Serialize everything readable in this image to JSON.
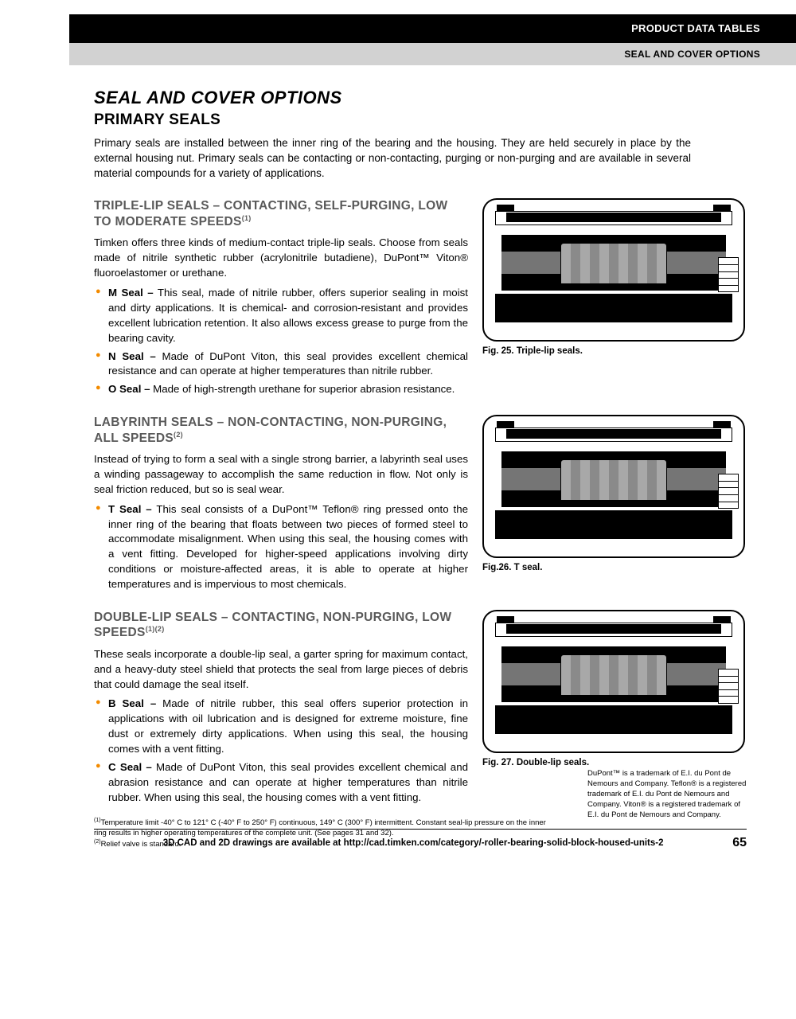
{
  "header": {
    "black_bar": "PRODUCT DATA TABLES",
    "gray_bar": "SEAL AND COVER OPTIONS"
  },
  "title": "SEAL AND COVER OPTIONS",
  "subtitle": "PRIMARY SEALS",
  "intro": "Primary seals are installed between the inner ring of the bearing and the housing. They are held securely in place by the external housing nut. Primary seals can be contacting or non-contacting, purging or non-purging and are available in several material compounds for a variety of applications.",
  "sections": [
    {
      "heading": "TRIPLE-LIP SEALS – CONTACTING, SELF-PURGING, LOW TO MODERATE SPEEDS",
      "heading_sup": "(1)",
      "para": "Timken offers three kinds of medium-contact triple-lip seals. Choose from seals made of nitrile synthetic rubber (acrylonitrile butadiene), DuPont™ Viton® fluoroelastomer or urethane.",
      "bullets": [
        {
          "bold": "M Seal –",
          "text": " This seal, made of nitrile rubber, offers superior sealing in moist and dirty applications. It is chemical- and corrosion-resistant and provides excellent lubrication retention. It also allows excess grease to purge from the bearing cavity."
        },
        {
          "bold": "N Seal –",
          "text": " Made of DuPont Viton, this seal provides excellent chemical resistance and can operate at higher temperatures than nitrile rubber."
        },
        {
          "bold": "O Seal –",
          "text": " Made of high-strength urethane for superior abrasion resistance."
        }
      ],
      "fig_caption": "Fig. 25. Triple-lip seals."
    },
    {
      "heading": "LABYRINTH SEALS – NON-CONTACTING, NON-PURGING, ALL SPEEDS",
      "heading_sup": "(2)",
      "para": "Instead of trying to form a seal with a single strong barrier, a labyrinth seal uses a winding passageway to accomplish the same reduction in flow. Not only is seal friction reduced, but so is seal wear.",
      "bullets": [
        {
          "bold": "T Seal –",
          "text": " This seal consists of a DuPont™ Teflon® ring pressed onto the inner ring of the bearing that floats between two pieces of formed steel to accommodate misalignment. When using this seal, the housing comes with a vent fitting. Developed for higher-speed applications involving dirty conditions or moisture-affected areas, it is able to operate at higher temperatures and is impervious to most chemicals."
        }
      ],
      "fig_caption": "Fig.26. T seal."
    },
    {
      "heading": "DOUBLE-LIP SEALS – CONTACTING, NON-PURGING, LOW SPEEDS",
      "heading_sup": "(1)(2)",
      "para": "These seals incorporate a double-lip seal, a garter spring for maximum contact, and a heavy-duty steel shield that protects the seal from large pieces of debris that could damage the seal itself.",
      "bullets": [
        {
          "bold": "B Seal –",
          "text": " Made of nitrile rubber, this seal offers superior protection in applications with oil lubrication and is designed for extreme moisture, fine dust or extremely dirty applications. When using this seal, the housing comes with a vent fitting."
        },
        {
          "bold": "C Seal –",
          "text": " Made of DuPont Viton, this seal provides excellent chemical and abrasion resistance and can operate at higher temperatures than nitrile rubber. When using this seal, the housing comes with a vent fitting."
        }
      ],
      "fig_caption": "Fig. 27. Double-lip seals."
    }
  ],
  "footnotes": {
    "n1_sup": "(1)",
    "n1": "Temperature limit -40° C to 121° C (-40° F to 250° F) continuous, 149° C (300° F) intermittent. Constant seal-lip pressure on the inner ring results in higher operating temperatures of the complete unit. (See pages 31 and 32).",
    "n2_sup": "(2)",
    "n2": "Relief valve is standard."
  },
  "trademark": "DuPont™ is a trademark of E.I. du Pont de Nemours and Company. Teflon® is a registered trademark of E.I. du Pont de Nemours and Company. Viton® is a registered trademark of E.I. du Pont de Nemours and Company.",
  "footer": {
    "text": "3D CAD and 2D drawings are available at http://cad.timken.com/category/-roller-bearing-solid-block-housed-units-2",
    "page": "65"
  },
  "colors": {
    "bullet": "#f38b00",
    "h3": "#595959"
  }
}
